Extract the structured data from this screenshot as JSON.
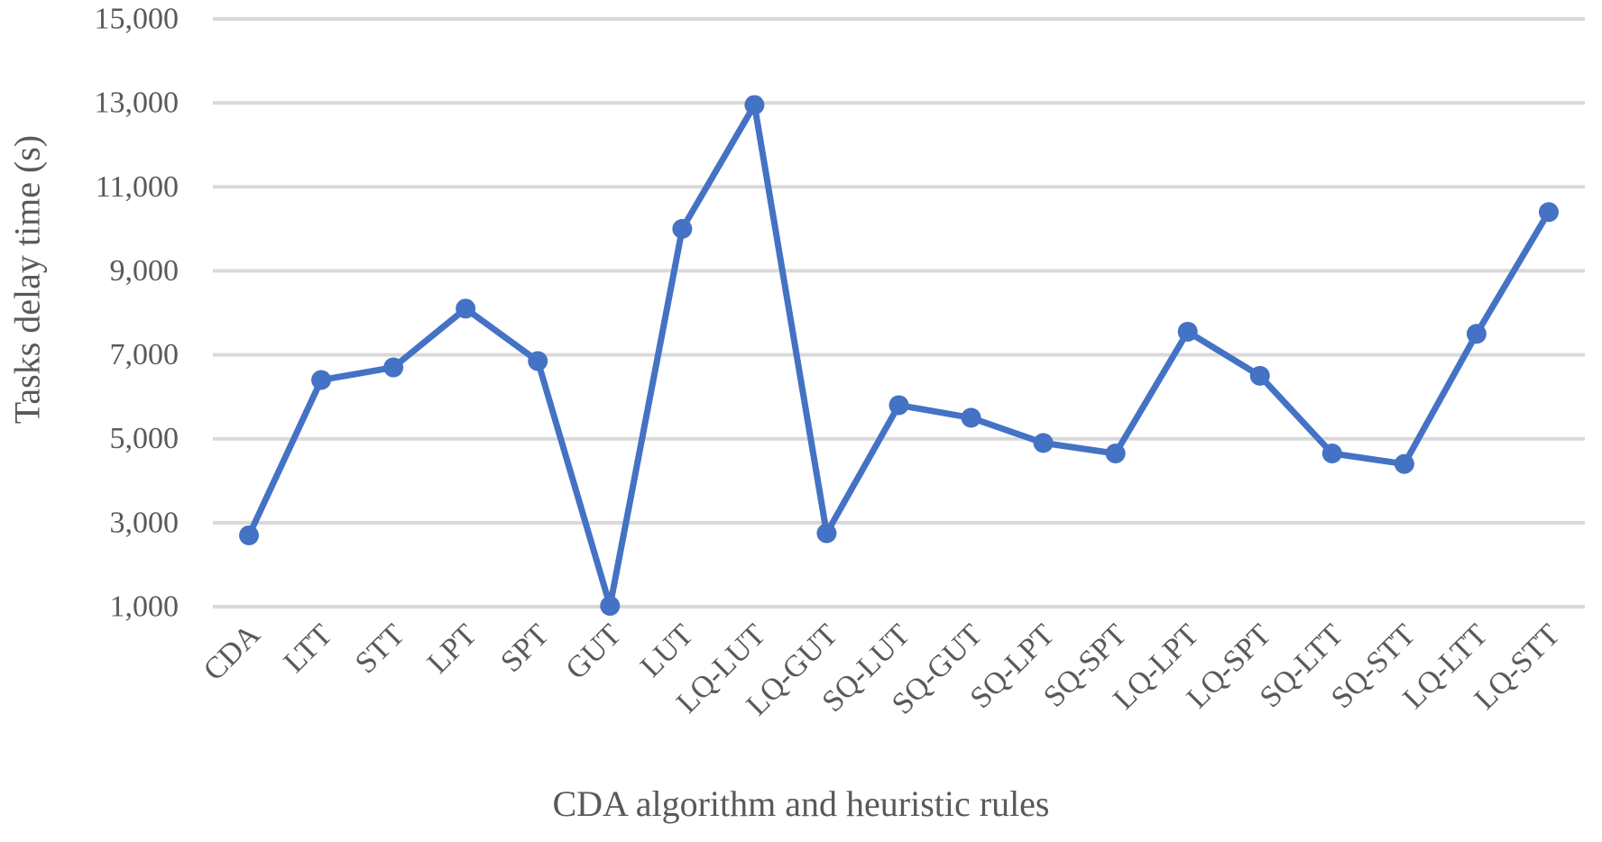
{
  "chart_data": {
    "type": "line",
    "title": "",
    "xlabel": "CDA algorithm and heuristic rules",
    "ylabel": "Tasks delay time (s)",
    "categories": [
      "CDA",
      "LTT",
      "STT",
      "LPT",
      "SPT",
      "GUT",
      "LUT",
      "LQ-LUT",
      "LQ-GUT",
      "SQ-LUT",
      "SQ-GUT",
      "SQ-LPT",
      "SQ-SPT",
      "LQ-LPT",
      "LQ-SPT",
      "SQ-LTT",
      "SQ-STT",
      "LQ-LTT",
      "LQ-STT"
    ],
    "values": [
      2700,
      6400,
      6700,
      8100,
      6850,
      1020,
      10000,
      12950,
      2750,
      5800,
      5500,
      4900,
      4650,
      7550,
      6500,
      4650,
      4400,
      7500,
      10400
    ],
    "ylim": [
      1000,
      15000
    ],
    "yticks": [
      1000,
      3000,
      5000,
      7000,
      9000,
      11000,
      13000,
      15000
    ],
    "ytick_labels": [
      "1,000",
      "3,000",
      "5,000",
      "7,000",
      "9,000",
      "11,000",
      "13,000",
      "15,000"
    ],
    "grid": true,
    "legend_position": "none",
    "line_color": "#4472C4",
    "marker": "circle",
    "gridline_color": "#D9D9D9",
    "text_color": "#595959"
  }
}
